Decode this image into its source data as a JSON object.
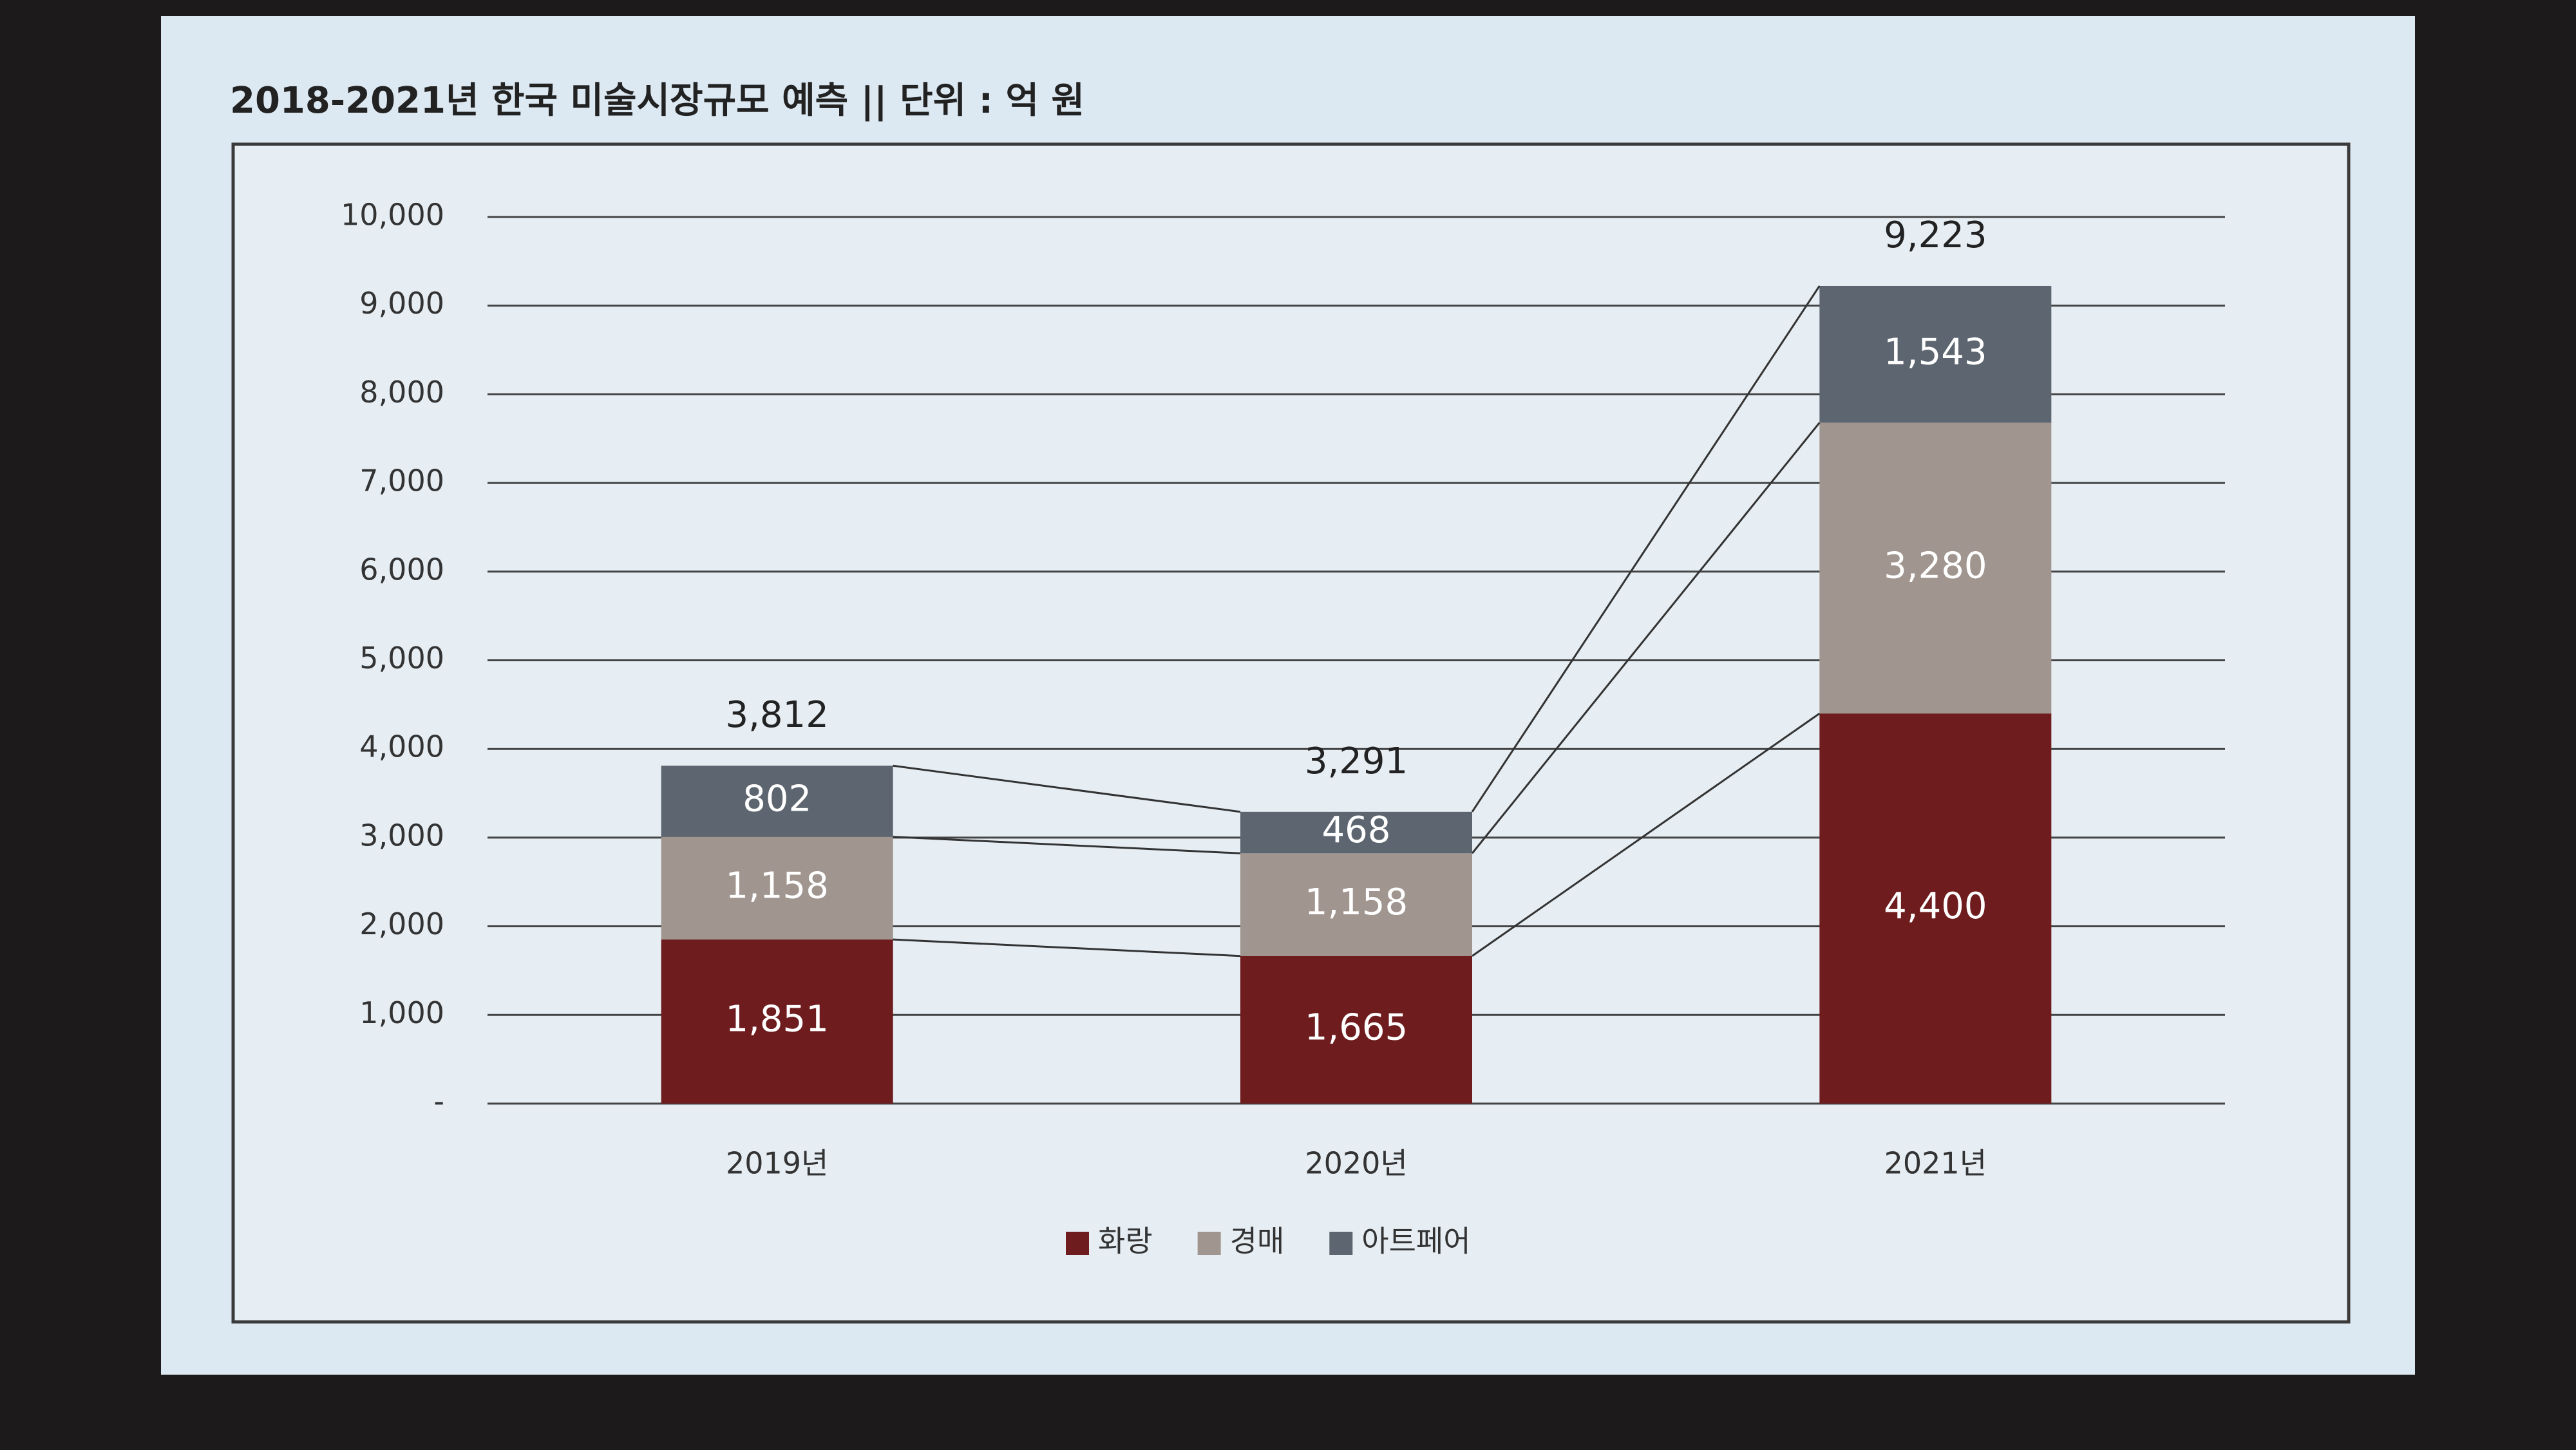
{
  "chart_data": {
    "type": "stacked_bar",
    "title": "2018-2021년 한국 미술시장규모 예측 || 단위 : 억 원",
    "categories": [
      "2019년",
      "2020년",
      "2021년"
    ],
    "series": [
      {
        "name": "화랑",
        "color": "#6e1c1e",
        "values": [
          1851,
          1665,
          4400
        ],
        "value_labels": [
          "1,851",
          "1,665",
          "4,400"
        ]
      },
      {
        "name": "경매",
        "color": "#a0958f",
        "values": [
          1158,
          1158,
          3280
        ],
        "value_labels": [
          "1,158",
          "1,158",
          "3,280"
        ]
      },
      {
        "name": "아트페어",
        "color": "#5d6670",
        "values": [
          802,
          468,
          1543
        ],
        "value_labels": [
          "802",
          "468",
          "1,543"
        ]
      }
    ],
    "totals": {
      "values": [
        3812,
        3291,
        9223
      ],
      "value_labels": [
        "3,812",
        "3,291",
        "9,223"
      ]
    },
    "ylim": [
      0,
      10000
    ],
    "yticks": [
      {
        "value": 0,
        "label": "-"
      },
      {
        "value": 1000,
        "label": "1,000"
      },
      {
        "value": 2000,
        "label": "2,000"
      },
      {
        "value": 3000,
        "label": "3,000"
      },
      {
        "value": 4000,
        "label": "4,000"
      },
      {
        "value": 5000,
        "label": "5,000"
      },
      {
        "value": 6000,
        "label": "6,000"
      },
      {
        "value": 7000,
        "label": "7,000"
      },
      {
        "value": 8000,
        "label": "8,000"
      },
      {
        "value": 9000,
        "label": "9,000"
      },
      {
        "value": 10000,
        "label": "10,000"
      }
    ],
    "grid": true,
    "legend": "bottom"
  }
}
